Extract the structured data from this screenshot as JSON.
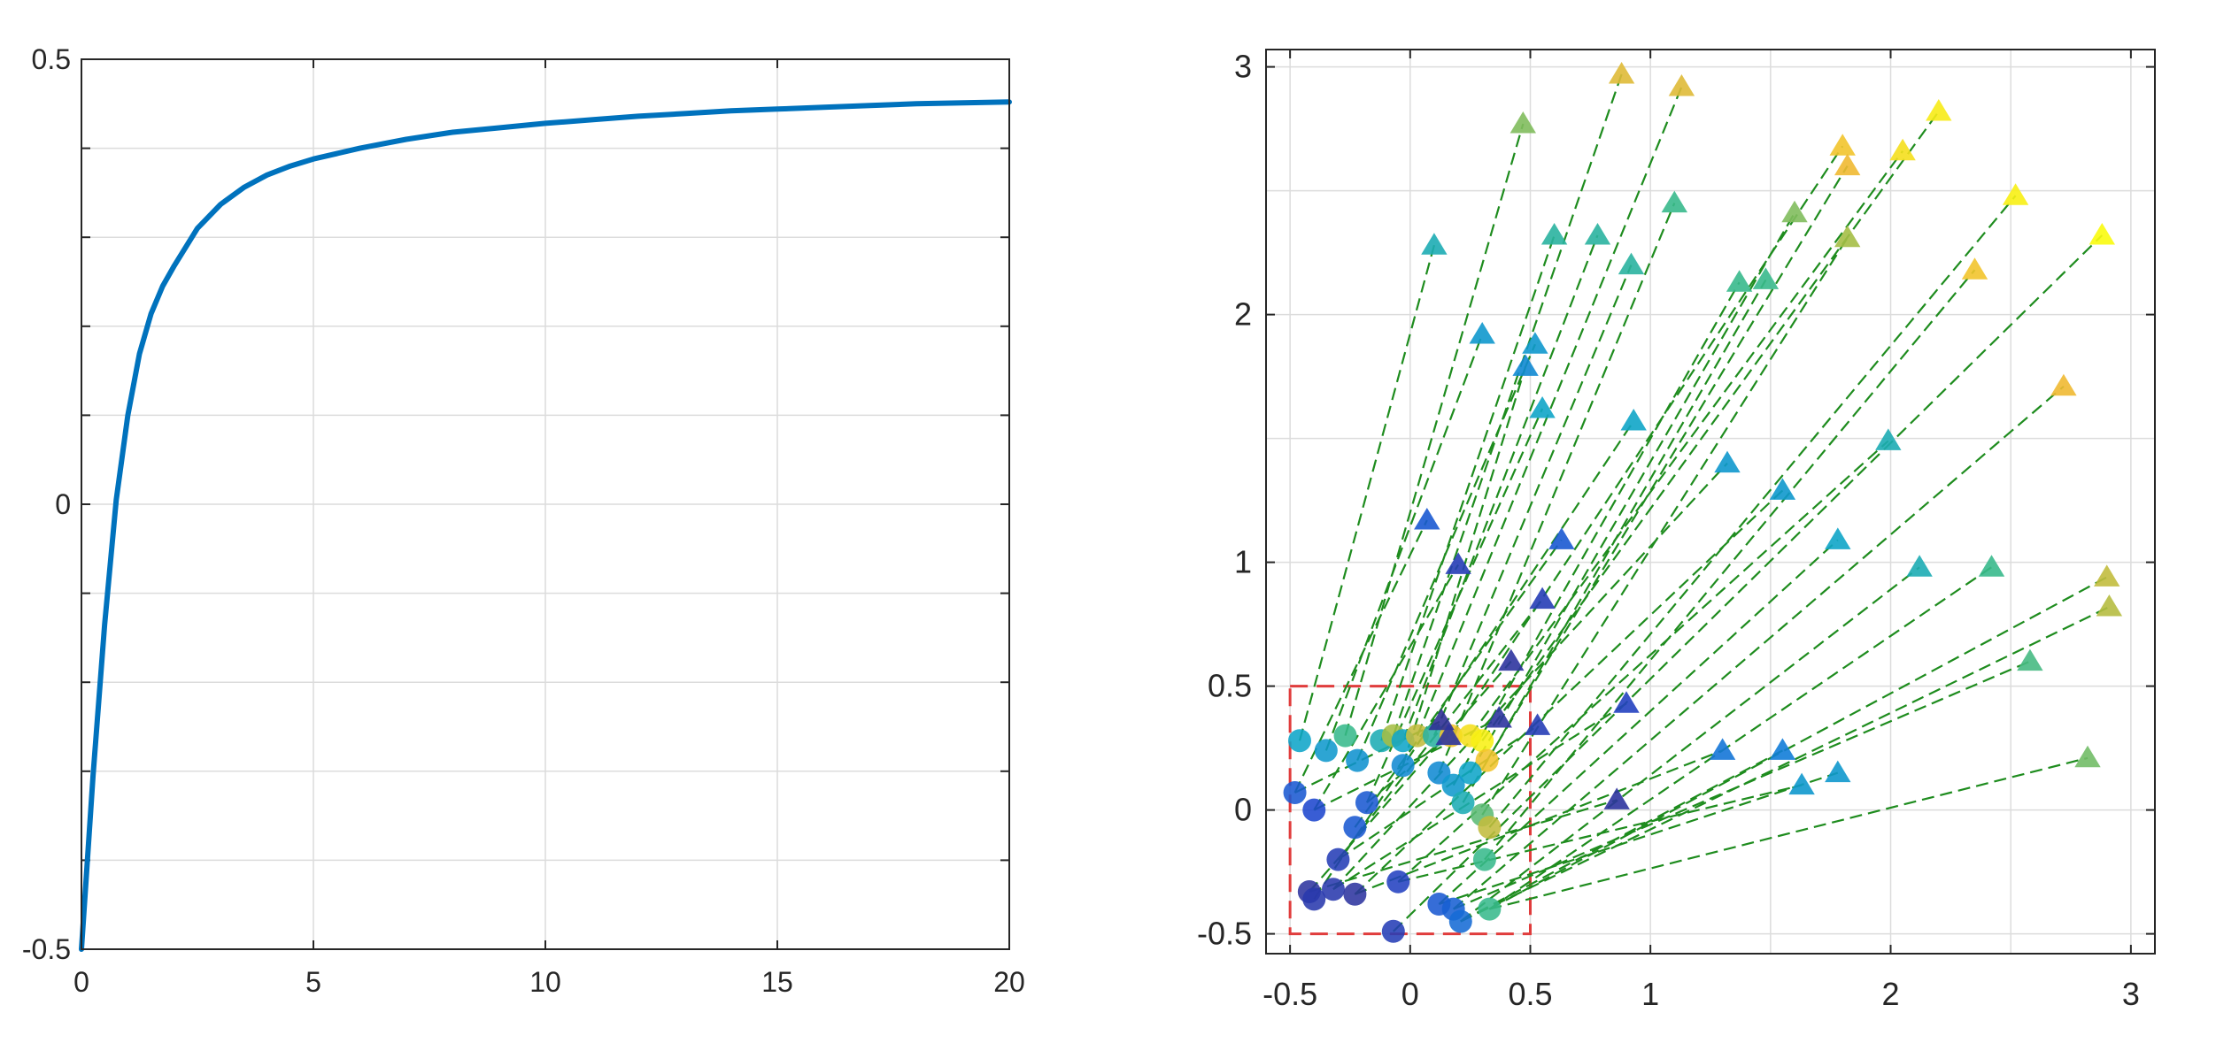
{
  "chart_data": [
    {
      "type": "line",
      "title": "",
      "xlabel": "",
      "ylabel": "",
      "xlim": [
        0,
        20
      ],
      "ylim": [
        -0.5,
        0.5
      ],
      "grid": true,
      "x_ticks": [
        0,
        5,
        10,
        15,
        20
      ],
      "x_tick_labels": [
        "0",
        "5",
        "10",
        "15",
        "20"
      ],
      "y_ticks": [
        -0.5,
        0,
        0.5
      ],
      "y_tick_labels": [
        "-0.5",
        "0",
        "0.5"
      ],
      "y_minor_gridlines": [
        -0.4,
        -0.3,
        -0.2,
        -0.1,
        0.1,
        0.2,
        0.3,
        0.4
      ],
      "series": [
        {
          "name": "curve",
          "color": "#0072BD",
          "x": [
            0,
            0.25,
            0.5,
            0.75,
            1,
            1.25,
            1.5,
            1.75,
            2,
            2.5,
            3,
            3.5,
            4,
            4.5,
            5,
            6,
            7,
            8,
            9,
            10,
            11,
            12,
            13,
            14,
            15,
            16,
            17,
            18,
            19,
            20
          ],
          "y": [
            -0.5,
            -0.305,
            -0.135,
            0.005,
            0.1,
            0.169,
            0.214,
            0.245,
            0.268,
            0.31,
            0.337,
            0.356,
            0.37,
            0.38,
            0.388,
            0.4,
            0.41,
            0.418,
            0.423,
            0.428,
            0.432,
            0.436,
            0.439,
            0.442,
            0.444,
            0.446,
            0.448,
            0.45,
            0.451,
            0.452
          ]
        }
      ]
    },
    {
      "type": "scatter",
      "title": "",
      "xlabel": "",
      "ylabel": "",
      "xlim": [
        -0.6,
        3.1
      ],
      "ylim": [
        -0.58,
        3.07
      ],
      "grid": true,
      "x_ticks": [
        -0.5,
        0,
        0.5,
        1,
        2,
        3
      ],
      "x_tick_labels": [
        "-0.5",
        "0",
        "0.5",
        "1",
        "2",
        "3"
      ],
      "x_gridlines": [
        -0.5,
        0,
        0.5,
        1,
        1.5,
        2,
        2.5,
        3
      ],
      "y_ticks": [
        -0.5,
        0,
        0.5,
        1,
        2,
        3
      ],
      "y_tick_labels": [
        "-0.5",
        "0",
        "0.5",
        "1",
        "2",
        "3"
      ],
      "y_gridlines": [
        -0.5,
        0,
        0.5,
        1,
        1.5,
        2,
        2.5,
        3
      ],
      "box": {
        "x": [
          -0.5,
          0.5
        ],
        "y": [
          -0.5,
          0.5
        ],
        "color": "#E03C3C",
        "style": "dashed"
      },
      "line_color": "#1E8C1E",
      "circle_points": [
        {
          "x": -0.46,
          "y": 0.28,
          "c": 0.45
        },
        {
          "x": -0.35,
          "y": 0.24,
          "c": 0.4
        },
        {
          "x": -0.27,
          "y": 0.3,
          "c": 0.6
        },
        {
          "x": -0.22,
          "y": 0.2,
          "c": 0.38
        },
        {
          "x": -0.12,
          "y": 0.28,
          "c": 0.5
        },
        {
          "x": -0.07,
          "y": 0.3,
          "c": 0.75
        },
        {
          "x": -0.03,
          "y": 0.28,
          "c": 0.45
        },
        {
          "x": 0.03,
          "y": 0.3,
          "c": 0.8
        },
        {
          "x": 0.1,
          "y": 0.3,
          "c": 0.55
        },
        {
          "x": 0.17,
          "y": 0.3,
          "c": 0.9
        },
        {
          "x": 0.25,
          "y": 0.3,
          "c": 0.95
        },
        {
          "x": 0.3,
          "y": 0.28,
          "c": 0.98
        },
        {
          "x": 0.32,
          "y": 0.2,
          "c": 0.9
        },
        {
          "x": -0.03,
          "y": 0.18,
          "c": 0.35
        },
        {
          "x": 0.12,
          "y": 0.15,
          "c": 0.35
        },
        {
          "x": 0.25,
          "y": 0.15,
          "c": 0.45
        },
        {
          "x": 0.18,
          "y": 0.1,
          "c": 0.4
        },
        {
          "x": 0.22,
          "y": 0.03,
          "c": 0.5
        },
        {
          "x": 0.3,
          "y": -0.02,
          "c": 0.65
        },
        {
          "x": 0.33,
          "y": -0.07,
          "c": 0.8
        },
        {
          "x": -0.48,
          "y": 0.07,
          "c": 0.2
        },
        {
          "x": -0.4,
          "y": 0.0,
          "c": 0.15
        },
        {
          "x": -0.18,
          "y": 0.03,
          "c": 0.2
        },
        {
          "x": -0.23,
          "y": -0.07,
          "c": 0.2
        },
        {
          "x": -0.3,
          "y": -0.2,
          "c": 0.1
        },
        {
          "x": 0.31,
          "y": -0.2,
          "c": 0.6
        },
        {
          "x": -0.42,
          "y": -0.33,
          "c": 0.05
        },
        {
          "x": -0.4,
          "y": -0.36,
          "c": 0.08
        },
        {
          "x": -0.32,
          "y": -0.32,
          "c": 0.08
        },
        {
          "x": -0.23,
          "y": -0.34,
          "c": 0.05
        },
        {
          "x": -0.05,
          "y": -0.29,
          "c": 0.12
        },
        {
          "x": 0.12,
          "y": -0.38,
          "c": 0.2
        },
        {
          "x": 0.18,
          "y": -0.4,
          "c": 0.22
        },
        {
          "x": 0.21,
          "y": -0.45,
          "c": 0.25
        },
        {
          "x": 0.33,
          "y": -0.4,
          "c": 0.6
        },
        {
          "x": -0.07,
          "y": -0.49,
          "c": 0.1
        }
      ],
      "triangle_points": [
        {
          "x": -0.46,
          "y": 0.28,
          "x2": 0.1,
          "y2": 2.28,
          "c": 0.5
        },
        {
          "x": -0.35,
          "y": 0.24,
          "x2": 0.3,
          "y2": 1.92,
          "c": 0.4
        },
        {
          "x": -0.27,
          "y": 0.3,
          "x2": 0.47,
          "y2": 2.77,
          "c": 0.7
        },
        {
          "x": -0.22,
          "y": 0.2,
          "x2": 0.52,
          "y2": 1.88,
          "c": 0.4
        },
        {
          "x": -0.12,
          "y": 0.28,
          "x2": 0.6,
          "y2": 2.32,
          "c": 0.55
        },
        {
          "x": -0.07,
          "y": 0.3,
          "x2": 0.88,
          "y2": 2.97,
          "c": 0.85
        },
        {
          "x": -0.03,
          "y": 0.28,
          "x2": 0.78,
          "y2": 2.32,
          "c": 0.55
        },
        {
          "x": 0.03,
          "y": 0.3,
          "x2": 1.13,
          "y2": 2.92,
          "c": 0.85
        },
        {
          "x": 0.1,
          "y": 0.3,
          "x2": 0.92,
          "y2": 2.2,
          "c": 0.55
        },
        {
          "x": 0.17,
          "y": 0.3,
          "x2": 1.8,
          "y2": 2.68,
          "c": 0.9
        },
        {
          "x": 0.25,
          "y": 0.3,
          "x2": 2.05,
          "y2": 2.66,
          "c": 0.95
        },
        {
          "x": 0.3,
          "y": 0.28,
          "x2": 2.2,
          "y2": 2.82,
          "c": 0.97
        },
        {
          "x": 0.32,
          "y": 0.2,
          "x2": 1.82,
          "y2": 2.6,
          "c": 0.88
        },
        {
          "x": -0.03,
          "y": 0.18,
          "x2": 0.48,
          "y2": 1.79,
          "c": 0.35
        },
        {
          "x": 0.12,
          "y": 0.15,
          "x2": 1.1,
          "y2": 2.45,
          "c": 0.6
        },
        {
          "x": 0.25,
          "y": 0.15,
          "x2": 1.6,
          "y2": 2.41,
          "c": 0.7
        },
        {
          "x": 0.18,
          "y": 0.1,
          "x2": 1.37,
          "y2": 2.13,
          "c": 0.6
        },
        {
          "x": 0.22,
          "y": 0.03,
          "x2": 1.48,
          "y2": 2.14,
          "c": 0.6
        },
        {
          "x": 0.3,
          "y": -0.02,
          "x2": 1.82,
          "y2": 2.31,
          "c": 0.75
        },
        {
          "x": 0.33,
          "y": -0.07,
          "x2": 2.52,
          "y2": 2.48,
          "c": 0.98
        },
        {
          "x": -0.48,
          "y": 0.07,
          "x2": 0.07,
          "y2": 1.17,
          "c": 0.2
        },
        {
          "x": -0.4,
          "y": 0.0,
          "x2": 0.2,
          "y2": 0.99,
          "c": 0.1
        },
        {
          "x": -0.18,
          "y": 0.03,
          "x2": 0.55,
          "y2": 1.62,
          "c": 0.45
        },
        {
          "x": -0.23,
          "y": -0.07,
          "x2": 0.63,
          "y2": 1.09,
          "c": 0.2
        },
        {
          "x": -0.3,
          "y": -0.2,
          "x2": 0.55,
          "y2": 0.85,
          "c": 0.1
        },
        {
          "x": 0.31,
          "y": -0.2,
          "x2": 2.35,
          "y2": 2.18,
          "c": 0.9
        },
        {
          "x": -0.42,
          "y": -0.33,
          "x2": 0.42,
          "y2": 0.6,
          "c": 0.05
        },
        {
          "x": -0.4,
          "y": -0.36,
          "x2": 0.93,
          "y2": 1.57,
          "c": 0.45
        },
        {
          "x": -0.32,
          "y": -0.32,
          "x2": 1.32,
          "y2": 1.4,
          "c": 0.4
        },
        {
          "x": -0.23,
          "y": -0.34,
          "x2": 1.55,
          "y2": 1.29,
          "c": 0.4
        },
        {
          "x": -0.05,
          "y": -0.29,
          "x2": 1.99,
          "y2": 1.49,
          "c": 0.5
        },
        {
          "x": 0.12,
          "y": -0.38,
          "x2": 1.78,
          "y2": 1.09,
          "c": 0.45
        },
        {
          "x": 0.18,
          "y": -0.4,
          "x2": 2.72,
          "y2": 1.71,
          "c": 0.88
        },
        {
          "x": 0.21,
          "y": -0.45,
          "x2": 2.12,
          "y2": 0.98,
          "c": 0.5
        },
        {
          "x": 0.33,
          "y": -0.4,
          "x2": 2.42,
          "y2": 0.98,
          "c": 0.6
        },
        {
          "x": -0.07,
          "y": -0.49,
          "x2": 2.88,
          "y2": 2.32,
          "c": 1.0
        },
        {
          "x": 0.33,
          "y": -0.4,
          "x2": 2.9,
          "y2": 0.94,
          "c": 0.8
        },
        {
          "x": 0.21,
          "y": -0.45,
          "x2": 2.91,
          "y2": 0.82,
          "c": 0.78
        },
        {
          "x": 0.18,
          "y": -0.4,
          "x2": 2.58,
          "y2": 0.6,
          "c": 0.62
        },
        {
          "x": 0.33,
          "y": -0.4,
          "x2": 2.82,
          "y2": 0.21,
          "c": 0.68
        },
        {
          "x": 0.12,
          "y": -0.38,
          "x2": 1.78,
          "y2": 0.15,
          "c": 0.4
        },
        {
          "x": -0.05,
          "y": -0.29,
          "x2": 1.63,
          "y2": 0.1,
          "c": 0.4
        },
        {
          "x": 0.21,
          "y": -0.45,
          "x2": 1.55,
          "y2": 0.24,
          "c": 0.3
        },
        {
          "x": -0.23,
          "y": -0.34,
          "x2": 1.3,
          "y2": 0.24,
          "c": 0.28
        },
        {
          "x": -0.32,
          "y": -0.32,
          "x2": 0.9,
          "y2": 0.43,
          "c": 0.12
        },
        {
          "x": -0.42,
          "y": -0.33,
          "x2": 0.86,
          "y2": 0.04,
          "c": 0.05
        },
        {
          "x": -0.3,
          "y": -0.2,
          "x2": 0.53,
          "y2": 0.34,
          "c": 0.1
        },
        {
          "x": -0.4,
          "y": 0.0,
          "x2": 0.37,
          "y2": 0.37,
          "c": 0.05
        },
        {
          "x": -0.48,
          "y": 0.07,
          "x2": 0.13,
          "y2": 0.36,
          "c": 0.03
        },
        {
          "x": -0.18,
          "y": 0.03,
          "x2": 0.16,
          "y2": 0.3,
          "c": 0.05
        }
      ]
    }
  ]
}
